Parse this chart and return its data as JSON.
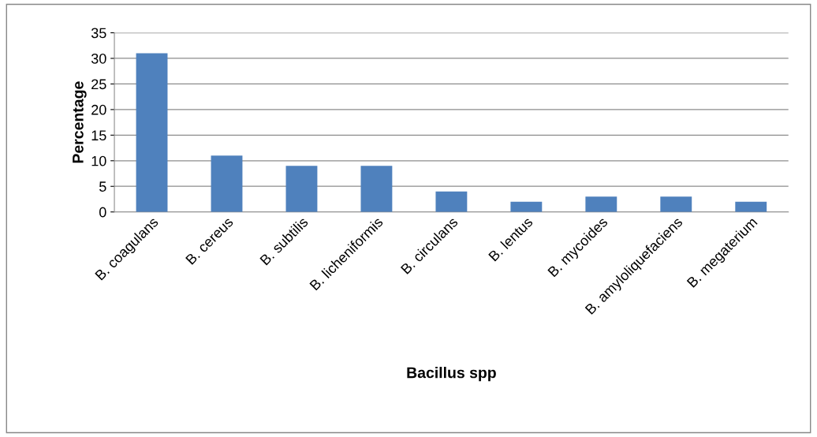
{
  "chart_data": {
    "type": "bar",
    "xlabel": "Bacillus spp",
    "ylabel": "Percentage",
    "categories": [
      "B. coagulans",
      "B. cereus",
      "B. subtilis",
      "B. licheniformis",
      "B. circulans",
      "B. lentus",
      "B. mycoides",
      "B. amyloliquefaciens",
      "B. megaterium"
    ],
    "values": [
      31,
      11,
      9,
      9,
      4,
      2,
      3,
      3,
      2
    ],
    "color": "#4f81bd",
    "ylim": [
      0,
      35
    ],
    "yticks": [
      0,
      5,
      10,
      15,
      20,
      25,
      30,
      35
    ],
    "grid": "y",
    "legend": false
  }
}
